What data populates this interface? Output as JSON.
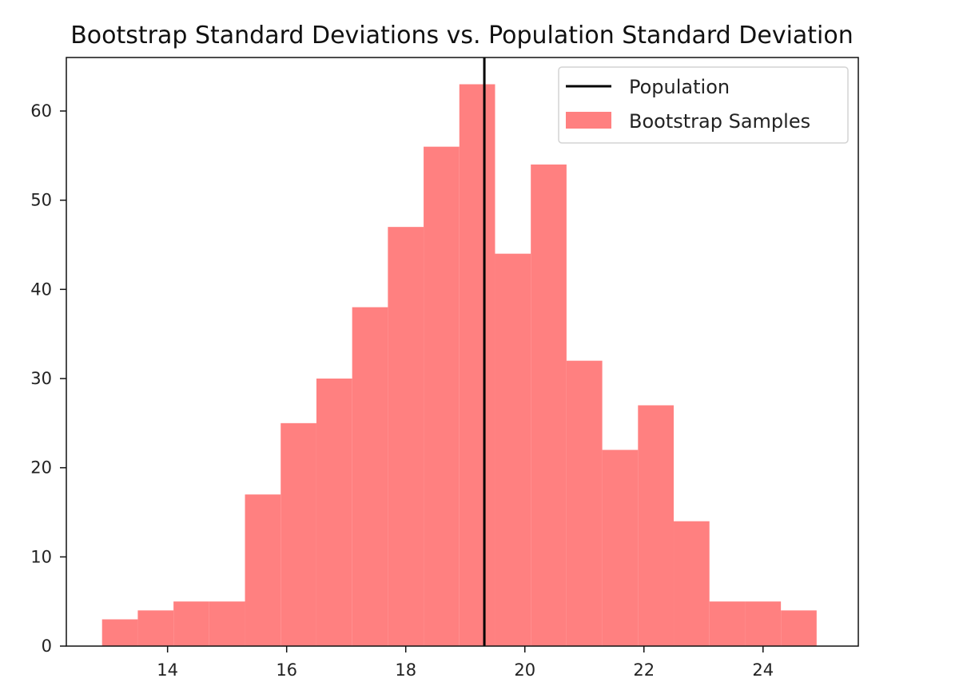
{
  "chart_data": {
    "type": "bar",
    "title": "Bootstrap Standard Deviations vs. Population Standard Deviation",
    "xlabel": "",
    "ylabel": "",
    "xlim": [
      12.3,
      25.6
    ],
    "ylim": [
      0,
      66
    ],
    "x_ticks": [
      14,
      16,
      18,
      20,
      22,
      24
    ],
    "y_ticks": [
      0,
      10,
      20,
      30,
      40,
      50,
      60
    ],
    "bins": [
      {
        "start": 12.9,
        "end": 13.5,
        "count": 3
      },
      {
        "start": 13.5,
        "end": 14.1,
        "count": 4
      },
      {
        "start": 14.1,
        "end": 14.7,
        "count": 5
      },
      {
        "start": 14.7,
        "end": 15.3,
        "count": 5
      },
      {
        "start": 15.3,
        "end": 15.9,
        "count": 17
      },
      {
        "start": 15.9,
        "end": 16.5,
        "count": 25
      },
      {
        "start": 16.5,
        "end": 17.1,
        "count": 30
      },
      {
        "start": 17.1,
        "end": 17.7,
        "count": 38
      },
      {
        "start": 17.7,
        "end": 18.3,
        "count": 47
      },
      {
        "start": 18.3,
        "end": 18.9,
        "count": 56
      },
      {
        "start": 18.9,
        "end": 19.5,
        "count": 63
      },
      {
        "start": 19.5,
        "end": 20.1,
        "count": 44
      },
      {
        "start": 20.1,
        "end": 20.7,
        "count": 54
      },
      {
        "start": 20.7,
        "end": 21.3,
        "count": 32
      },
      {
        "start": 21.3,
        "end": 21.9,
        "count": 22
      },
      {
        "start": 21.9,
        "end": 22.5,
        "count": 27
      },
      {
        "start": 22.5,
        "end": 23.1,
        "count": 14
      },
      {
        "start": 23.1,
        "end": 23.7,
        "count": 5
      },
      {
        "start": 23.7,
        "end": 24.3,
        "count": 5
      },
      {
        "start": 24.3,
        "end": 24.9,
        "count": 4
      }
    ],
    "population_line": {
      "name": "Population",
      "x": 19.32,
      "color": "#000000"
    },
    "histogram_series": {
      "name": "Bootstrap Samples",
      "color": "#ff8080"
    },
    "legend": {
      "placement": "top-right",
      "entries": [
        {
          "label": "Population",
          "kind": "line",
          "color": "#000000"
        },
        {
          "label": "Bootstrap Samples",
          "kind": "patch",
          "color": "#ff8080"
        }
      ]
    },
    "grid": false
  }
}
